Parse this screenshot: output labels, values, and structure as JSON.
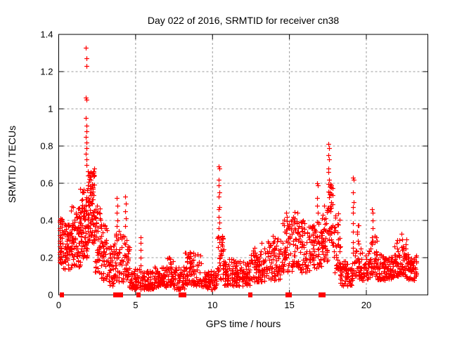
{
  "chart_data": {
    "type": "scatter",
    "title": "Day 022 of 2016, SRMTID for receiver cn38",
    "xlabel": "GPS time / hours",
    "ylabel": "SRMTID / TECUs",
    "xlim": [
      0,
      24
    ],
    "ylim": [
      0,
      1.4
    ],
    "xticks": [
      0,
      5,
      10,
      15,
      20
    ],
    "yticks": [
      0,
      0.2,
      0.4,
      0.6,
      0.8,
      1,
      1.2,
      1.4
    ],
    "ytick_labels": [
      "0",
      "0.2",
      "0.4",
      "0.6",
      "0.8",
      "1",
      "1.2",
      "1.4"
    ],
    "grid": {
      "visible": true,
      "style": "dashed",
      "color": "#9b9b9b"
    },
    "legend": "none",
    "marker": {
      "shape": "plus",
      "color": "#ff0000",
      "size": 7
    },
    "border_color": "#000000",
    "background": "#ffffff",
    "seed": 7,
    "envelope_note": "segments of dense scatter band: [t_start_hours, t_end_hours, y_min_TECUs, y_max_TECUs, point_count]",
    "envelope": [
      [
        0.05,
        0.3,
        0.17,
        0.42,
        35
      ],
      [
        0.3,
        0.8,
        0.14,
        0.38,
        60
      ],
      [
        0.8,
        1.4,
        0.15,
        0.48,
        80
      ],
      [
        1.4,
        1.85,
        0.2,
        0.58,
        80
      ],
      [
        1.85,
        2.35,
        0.28,
        0.68,
        90
      ],
      [
        2.35,
        2.7,
        0.12,
        0.5,
        45
      ],
      [
        2.7,
        3.2,
        0.08,
        0.38,
        50
      ],
      [
        3.2,
        3.7,
        0.05,
        0.3,
        45
      ],
      [
        3.7,
        4.2,
        0.06,
        0.35,
        40
      ],
      [
        4.2,
        4.6,
        0.08,
        0.32,
        35
      ],
      [
        4.6,
        5.3,
        0.03,
        0.15,
        50
      ],
      [
        5.3,
        6.2,
        0.03,
        0.13,
        85
      ],
      [
        6.2,
        7.0,
        0.04,
        0.15,
        75
      ],
      [
        7.0,
        7.5,
        0.05,
        0.2,
        50
      ],
      [
        7.5,
        8.2,
        0.03,
        0.15,
        60
      ],
      [
        8.2,
        9.3,
        0.05,
        0.23,
        85
      ],
      [
        9.3,
        10.3,
        0.03,
        0.13,
        70
      ],
      [
        10.3,
        10.75,
        0.08,
        0.32,
        40
      ],
      [
        10.75,
        11.5,
        0.05,
        0.2,
        65
      ],
      [
        11.5,
        12.5,
        0.05,
        0.18,
        80
      ],
      [
        12.5,
        13.5,
        0.07,
        0.26,
        80
      ],
      [
        13.5,
        14.4,
        0.08,
        0.32,
        75
      ],
      [
        14.4,
        15.2,
        0.12,
        0.42,
        65
      ],
      [
        15.2,
        15.7,
        0.15,
        0.47,
        50
      ],
      [
        15.7,
        16.5,
        0.12,
        0.4,
        70
      ],
      [
        16.5,
        17.1,
        0.14,
        0.4,
        50
      ],
      [
        17.1,
        17.5,
        0.18,
        0.5,
        40
      ],
      [
        17.5,
        17.8,
        0.28,
        0.6,
        35
      ],
      [
        17.8,
        18.3,
        0.12,
        0.45,
        45
      ],
      [
        18.3,
        19.1,
        0.05,
        0.2,
        65
      ],
      [
        19.1,
        19.5,
        0.1,
        0.4,
        32
      ],
      [
        19.5,
        20.3,
        0.08,
        0.26,
        65
      ],
      [
        20.3,
        20.7,
        0.1,
        0.32,
        40
      ],
      [
        20.7,
        21.8,
        0.08,
        0.22,
        90
      ],
      [
        21.8,
        22.6,
        0.1,
        0.3,
        70
      ],
      [
        22.6,
        23.3,
        0.08,
        0.22,
        60
      ]
    ],
    "outliers_note": "individually visible spike points [hours, TECUs]",
    "outliers": [
      [
        0.05,
        0.4
      ],
      [
        0.06,
        0.36
      ],
      [
        0.05,
        0.32
      ],
      [
        0.07,
        0.29
      ],
      [
        0.05,
        0.26
      ],
      [
        0.06,
        0.23
      ],
      [
        0.08,
        0.2
      ],
      [
        1.78,
        1.33
      ],
      [
        1.8,
        1.27
      ],
      [
        1.8,
        1.23
      ],
      [
        1.76,
        1.06
      ],
      [
        1.79,
        1.05
      ],
      [
        1.78,
        0.95
      ],
      [
        1.8,
        0.91
      ],
      [
        1.82,
        0.88
      ],
      [
        1.78,
        0.85
      ],
      [
        1.8,
        0.82
      ],
      [
        1.8,
        0.79
      ],
      [
        1.78,
        0.76
      ],
      [
        1.81,
        0.73
      ],
      [
        1.8,
        0.7
      ],
      [
        3.78,
        0.52
      ],
      [
        3.8,
        0.48
      ],
      [
        3.76,
        0.44
      ],
      [
        3.82,
        0.4
      ],
      [
        3.79,
        0.37
      ],
      [
        4.33,
        0.53
      ],
      [
        4.36,
        0.49
      ],
      [
        4.3,
        0.45
      ],
      [
        4.38,
        0.41
      ],
      [
        4.34,
        0.37
      ],
      [
        5.33,
        0.31
      ],
      [
        5.32,
        0.28
      ],
      [
        5.34,
        0.24
      ],
      [
        5.33,
        0.2
      ],
      [
        5.31,
        0.16
      ],
      [
        10.4,
        0.69
      ],
      [
        10.44,
        0.68
      ],
      [
        10.42,
        0.62
      ],
      [
        10.4,
        0.59
      ],
      [
        10.43,
        0.55
      ],
      [
        10.41,
        0.53
      ],
      [
        10.44,
        0.47
      ],
      [
        10.4,
        0.46
      ],
      [
        10.42,
        0.42
      ],
      [
        10.45,
        0.39
      ],
      [
        10.41,
        0.36
      ],
      [
        10.55,
        0.3
      ],
      [
        10.56,
        0.27
      ],
      [
        10.54,
        0.24
      ],
      [
        13.2,
        0.28
      ],
      [
        14.8,
        0.44
      ],
      [
        14.85,
        0.42
      ],
      [
        16.8,
        0.6
      ],
      [
        16.84,
        0.59
      ],
      [
        16.82,
        0.52
      ],
      [
        16.8,
        0.48
      ],
      [
        16.83,
        0.44
      ],
      [
        17.52,
        0.81
      ],
      [
        17.56,
        0.79
      ],
      [
        17.54,
        0.75
      ],
      [
        17.57,
        0.73
      ],
      [
        17.53,
        0.68
      ],
      [
        17.55,
        0.66
      ],
      [
        17.56,
        0.62
      ],
      [
        17.6,
        0.58
      ],
      [
        17.62,
        0.54
      ],
      [
        17.65,
        0.48
      ],
      [
        19.12,
        0.63
      ],
      [
        19.16,
        0.62
      ],
      [
        19.14,
        0.55
      ],
      [
        19.17,
        0.5
      ],
      [
        19.13,
        0.47
      ],
      [
        19.15,
        0.44
      ],
      [
        20.38,
        0.46
      ],
      [
        20.42,
        0.44
      ],
      [
        20.4,
        0.4
      ],
      [
        20.43,
        0.36
      ],
      [
        22.28,
        0.33
      ],
      [
        22.32,
        0.3
      ]
    ],
    "zero_markers_note": "solid red squares sitting on the y=0 axis line, at these hours",
    "zero_markers": [
      0.2,
      3.7,
      3.8,
      4.05,
      5.2,
      7.95,
      8.15,
      12.45,
      14.9,
      15.0,
      17.05,
      17.2
    ]
  }
}
